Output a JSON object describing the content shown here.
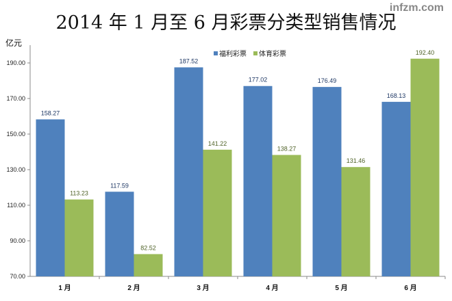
{
  "watermark": "infzm.com",
  "chart_data": {
    "type": "bar",
    "title": "2014 年 1 月至 6 月彩票分类型销售情况",
    "ylabel": "亿元",
    "xlabel": "",
    "categories": [
      "1  月",
      "2  月",
      "3  月",
      "4  月",
      "5  月",
      "6  月"
    ],
    "series": [
      {
        "name": "福利彩票",
        "color": "#4f81bd",
        "label_color": "#1f3864",
        "values": [
          158.27,
          117.59,
          187.52,
          177.02,
          176.49,
          168.13
        ]
      },
      {
        "name": "体育彩票",
        "color": "#9bbb59",
        "label_color": "#4f6228",
        "values": [
          113.23,
          82.52,
          141.22,
          138.27,
          131.46,
          192.4
        ]
      }
    ],
    "ylim": [
      70,
      200
    ],
    "yticks": [
      "70.00",
      "90.00",
      "110.00",
      "130.00",
      "150.00",
      "170.00",
      "190.00"
    ],
    "grid": false,
    "legend": "top-center"
  }
}
